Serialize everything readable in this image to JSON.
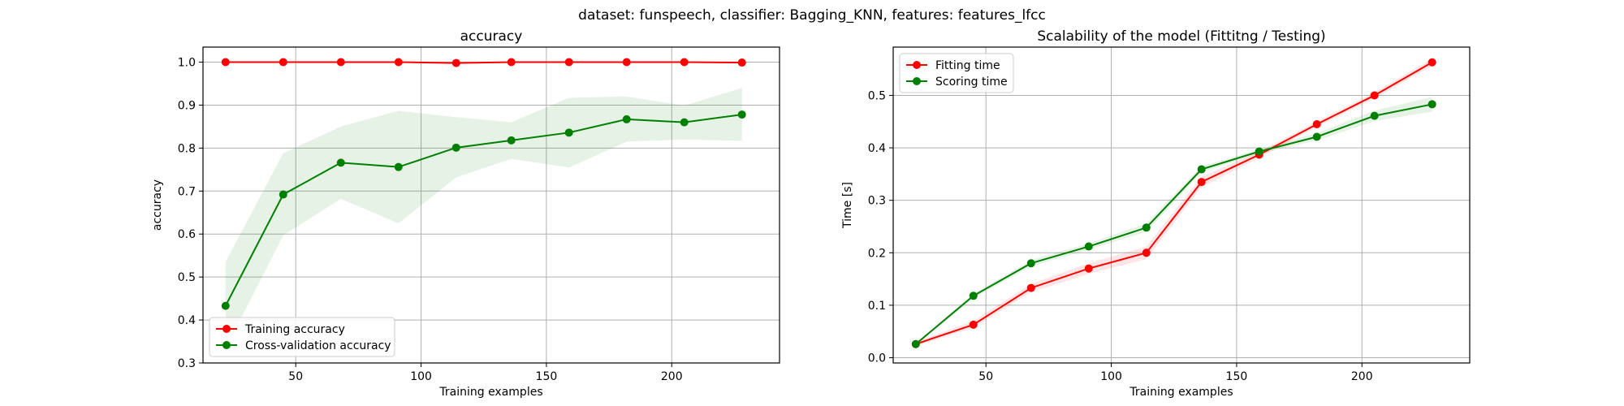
{
  "suptitle": "dataset: funspeech, classifier: Bagging_KNN, features: features_lfcc",
  "chart_data": [
    {
      "type": "line",
      "title": "accuracy",
      "xlabel": "Training examples",
      "ylabel": "accuracy",
      "xlim": [
        13,
        243
      ],
      "ylim": [
        0.3,
        1.035
      ],
      "xticks": [
        50,
        100,
        150,
        200
      ],
      "xtick_labels": [
        "50",
        "100",
        "150",
        "200"
      ],
      "yticks": [
        0.3,
        0.4,
        0.5,
        0.6,
        0.7,
        0.8,
        0.9,
        1.0
      ],
      "ytick_labels": [
        "0.3",
        "0.4",
        "0.5",
        "0.6",
        "0.7",
        "0.8",
        "0.9",
        "1.0"
      ],
      "grid": true,
      "legend_position": "lower-left",
      "x": [
        22,
        45,
        68,
        91,
        114,
        136,
        159,
        182,
        205,
        228
      ],
      "series": [
        {
          "name": "Training accuracy",
          "color": "#ff0000",
          "values": [
            1.0,
            1.0,
            1.0,
            1.0,
            0.998,
            1.0,
            1.0,
            1.0,
            1.0,
            0.999
          ],
          "lower": [
            0.998,
            0.999,
            0.999,
            0.999,
            0.995,
            0.999,
            0.999,
            0.999,
            0.999,
            0.997
          ],
          "upper": [
            1.0,
            1.0,
            1.0,
            1.0,
            1.0,
            1.0,
            1.0,
            1.0,
            1.0,
            1.0
          ]
        },
        {
          "name": "Cross-validation accuracy",
          "color": "#008000",
          "values": [
            0.433,
            0.692,
            0.766,
            0.756,
            0.801,
            0.818,
            0.836,
            0.867,
            0.86,
            0.878
          ],
          "lower": [
            0.333,
            0.597,
            0.682,
            0.625,
            0.732,
            0.775,
            0.755,
            0.815,
            0.82,
            0.817
          ],
          "upper": [
            0.535,
            0.788,
            0.85,
            0.887,
            0.872,
            0.86,
            0.917,
            0.92,
            0.899,
            0.94
          ]
        }
      ]
    },
    {
      "type": "line",
      "title": "Scalability of the model (Fittitng / Testing)",
      "xlabel": "Training examples",
      "ylabel": "Time [s]",
      "xlim": [
        13,
        243
      ],
      "ylim": [
        -0.01,
        0.592
      ],
      "xticks": [
        50,
        100,
        150,
        200
      ],
      "xtick_labels": [
        "50",
        "100",
        "150",
        "200"
      ],
      "yticks": [
        0.0,
        0.1,
        0.2,
        0.3,
        0.4,
        0.5
      ],
      "ytick_labels": [
        "0.0",
        "0.1",
        "0.2",
        "0.3",
        "0.4",
        "0.5"
      ],
      "grid": true,
      "legend_position": "upper-left",
      "x": [
        22,
        45,
        68,
        91,
        114,
        136,
        159,
        182,
        205,
        228
      ],
      "series": [
        {
          "name": "Fitting time",
          "color": "#ff0000",
          "values": [
            0.026,
            0.063,
            0.133,
            0.17,
            0.2,
            0.335,
            0.387,
            0.445,
            0.5,
            0.563
          ],
          "lower": [
            0.022,
            0.057,
            0.125,
            0.16,
            0.188,
            0.325,
            0.381,
            0.44,
            0.494,
            0.556
          ],
          "upper": [
            0.03,
            0.07,
            0.141,
            0.18,
            0.212,
            0.345,
            0.393,
            0.45,
            0.506,
            0.57
          ]
        },
        {
          "name": "Scoring time",
          "color": "#008000",
          "values": [
            0.026,
            0.118,
            0.18,
            0.212,
            0.248,
            0.359,
            0.393,
            0.421,
            0.461,
            0.483
          ],
          "lower": [
            0.024,
            0.114,
            0.174,
            0.206,
            0.24,
            0.353,
            0.389,
            0.414,
            0.451,
            0.469
          ],
          "upper": [
            0.028,
            0.122,
            0.186,
            0.218,
            0.256,
            0.365,
            0.397,
            0.428,
            0.471,
            0.497
          ]
        }
      ]
    }
  ]
}
